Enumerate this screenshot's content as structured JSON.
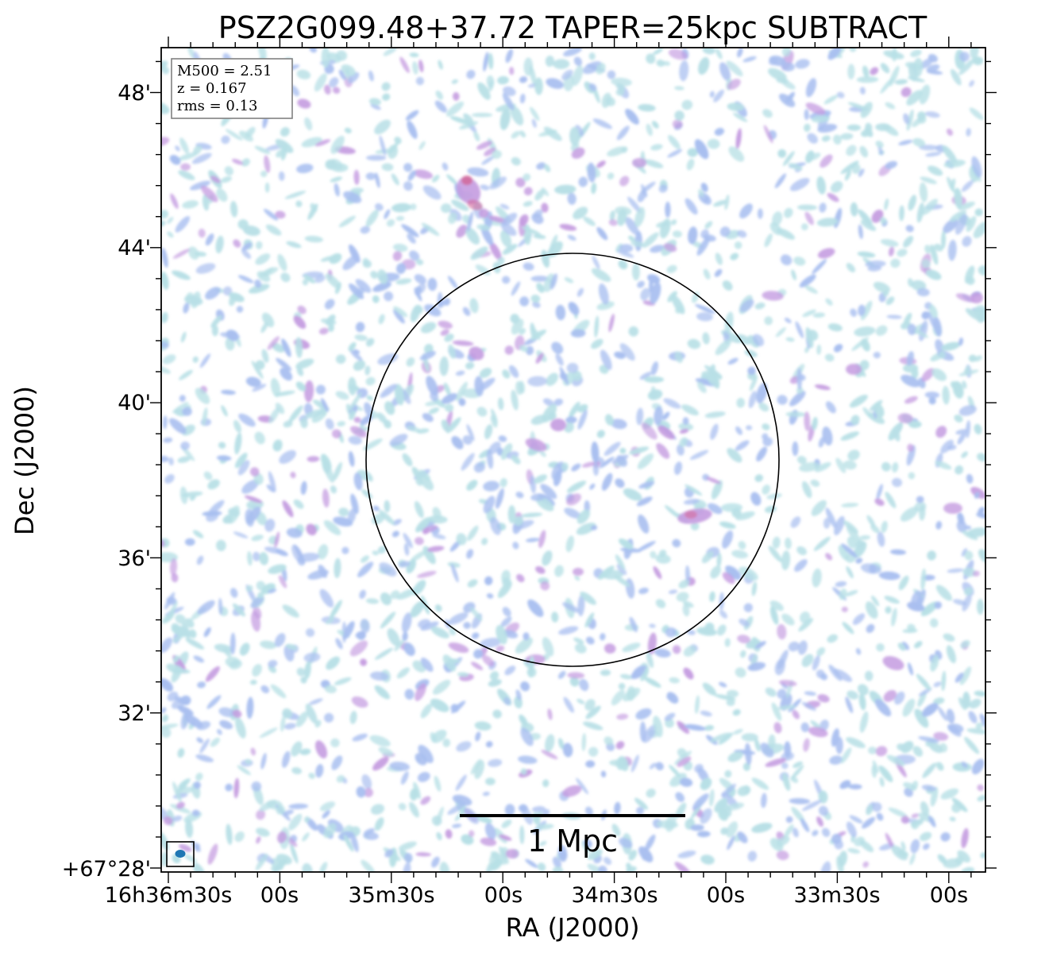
{
  "figure": {
    "title": "PSZ2G099.48+37.72 TAPER=25kpc SUBTRACT",
    "xlabel": "RA (J2000)",
    "ylabel": "Dec (J2000)",
    "info_box": {
      "lines": [
        "M500 = 2.51",
        "z = 0.167",
        "rms = 0.13"
      ]
    },
    "scale_bar": {
      "label": "1 Mpc"
    },
    "ra_ticks": [
      "16h36m30s",
      "00s",
      "35m30s",
      "00s",
      "34m30s",
      "00s",
      "33m30s",
      "00s"
    ],
    "dec_ticks": [
      "+67°28'",
      "32'",
      "36'",
      "40'",
      "44'",
      "48'"
    ],
    "colors": {
      "noise_light": "#b8e0e6",
      "noise_mid": "#a9bff0",
      "noise_strong": "#c49be0",
      "peak": "#d2699a",
      "beam": "#1f77b4"
    }
  }
}
